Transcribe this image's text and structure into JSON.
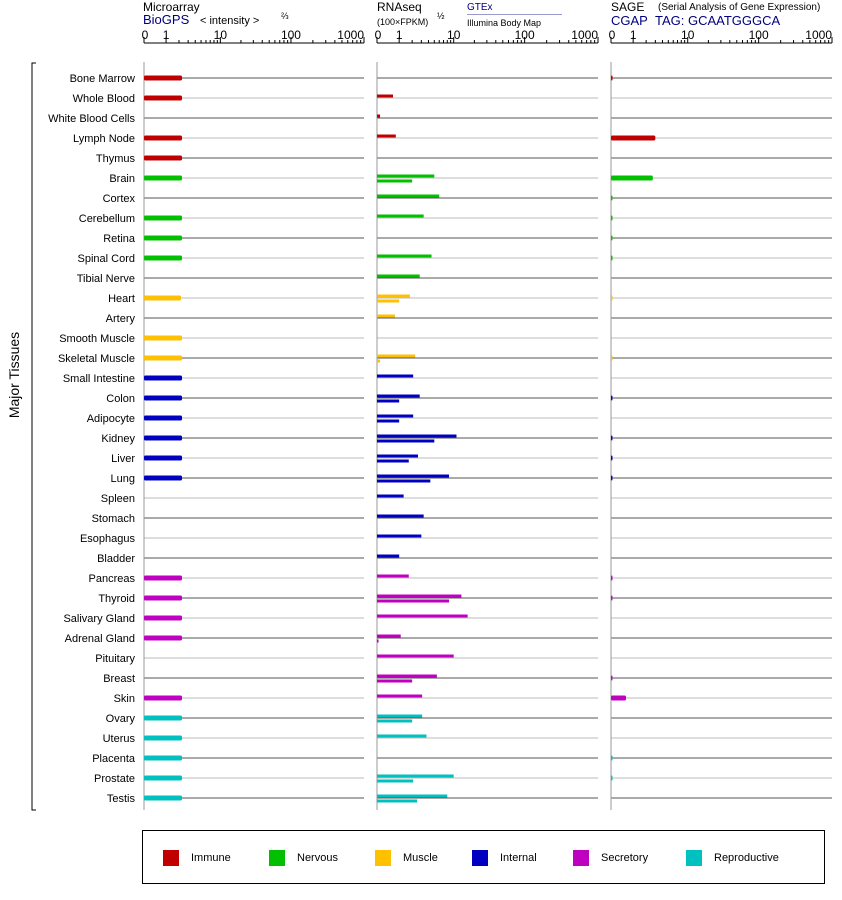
{
  "headers": {
    "microarray": {
      "title": "Microarray",
      "source": "BioGPS",
      "unit": "< intensity >",
      "unit_exp": "⅔"
    },
    "rnaseq": {
      "title": "RNAseq",
      "unit": "(100×FPKM)",
      "unit_exp": "½",
      "source1": "GTEx",
      "source2": "Illumina Body Map"
    },
    "sage": {
      "title": "SAGE",
      "subtitle": "(Serial Analysis of Gene Expression)",
      "source": "CGAP",
      "tag": "TAG: GCAATGGGCA"
    }
  },
  "y_group_label": "Major Tissues",
  "legend": [
    {
      "label": "Immune",
      "color": "#c00000"
    },
    {
      "label": "Nervous",
      "color": "#00c000"
    },
    {
      "label": "Muscle",
      "color": "#ffc000"
    },
    {
      "label": "Internal",
      "color": "#0000c0"
    },
    {
      "label": "Secretory",
      "color": "#c000c0"
    },
    {
      "label": "Reproductive",
      "color": "#00c0c0"
    }
  ],
  "chart_data": {
    "type": "bar",
    "x_scale": "log",
    "x_ticks": [
      "0",
      "1",
      "10",
      "100",
      "1000"
    ],
    "categories": [
      "Bone Marrow",
      "Whole Blood",
      "White Blood Cells",
      "Lymph Node",
      "Thymus",
      "Brain",
      "Cortex",
      "Cerebellum",
      "Retina",
      "Spinal Cord",
      "Tibial Nerve",
      "Heart",
      "Artery",
      "Smooth Muscle",
      "Skeletal Muscle",
      "Small Intestine",
      "Colon",
      "Adipocyte",
      "Kidney",
      "Liver",
      "Lung",
      "Spleen",
      "Stomach",
      "Esophagus",
      "Bladder",
      "Pancreas",
      "Thyroid",
      "Salivary Gland",
      "Adrenal Gland",
      "Pituitary",
      "Breast",
      "Skin",
      "Ovary",
      "Uterus",
      "Placenta",
      "Prostate",
      "Testis"
    ],
    "groups": [
      "Immune",
      "Immune",
      "Immune",
      "Immune",
      "Immune",
      "Nervous",
      "Nervous",
      "Nervous",
      "Nervous",
      "Nervous",
      "Nervous",
      "Muscle",
      "Muscle",
      "Muscle",
      "Muscle",
      "Internal",
      "Internal",
      "Internal",
      "Internal",
      "Internal",
      "Internal",
      "Internal",
      "Internal",
      "Internal",
      "Internal",
      "Secretory",
      "Secretory",
      "Secretory",
      "Secretory",
      "Secretory",
      "Secretory",
      "Secretory",
      "Reproductive",
      "Reproductive",
      "Reproductive",
      "Reproductive",
      "Reproductive"
    ],
    "series": [
      {
        "name": "Microarray",
        "values": [
          2.3,
          2.3,
          null,
          2.3,
          2.3,
          2.3,
          null,
          2.3,
          2.3,
          2.3,
          null,
          2.2,
          null,
          2.3,
          2.3,
          2.3,
          2.3,
          2.3,
          2.3,
          2.3,
          2.3,
          null,
          null,
          null,
          null,
          2.3,
          2.3,
          2.3,
          2.3,
          null,
          null,
          2.3,
          2.3,
          2.3,
          2.3,
          2.3,
          2.3
        ]
      },
      {
        "name": "GTEx",
        "values": [
          null,
          0.65,
          0.1,
          0.8,
          null,
          5.0,
          6.0,
          3.3,
          null,
          4.5,
          2.8,
          1.8,
          0.75,
          null,
          2.3,
          2.1,
          2.8,
          2.1,
          11,
          2.6,
          8.5,
          1.3,
          3.3,
          3.0,
          1.0,
          1.7,
          13,
          16,
          1.1,
          10,
          5.5,
          3.1,
          3.1,
          3.7,
          null,
          10,
          8
        ]
      },
      {
        "name": "Illumina Body Map",
        "values": [
          null,
          null,
          null,
          null,
          null,
          2.0,
          null,
          null,
          null,
          null,
          null,
          1.0,
          null,
          null,
          0.1,
          null,
          1.0,
          1.0,
          5.0,
          1.7,
          4.3,
          null,
          null,
          null,
          null,
          null,
          8.5,
          null,
          0.05,
          null,
          2.0,
          null,
          2.0,
          null,
          null,
          2.1,
          2.5
        ]
      },
      {
        "name": "SAGE",
        "values": [
          0.05,
          null,
          null,
          3.0,
          null,
          2.7,
          0.02,
          0.02,
          0.02,
          0.02,
          null,
          0.01,
          null,
          null,
          0.01,
          null,
          0.02,
          null,
          0.02,
          0.02,
          0.02,
          null,
          null,
          null,
          null,
          0.02,
          0.02,
          null,
          null,
          null,
          0.02,
          0.6,
          null,
          null,
          0.02,
          0.02,
          null
        ]
      }
    ]
  }
}
